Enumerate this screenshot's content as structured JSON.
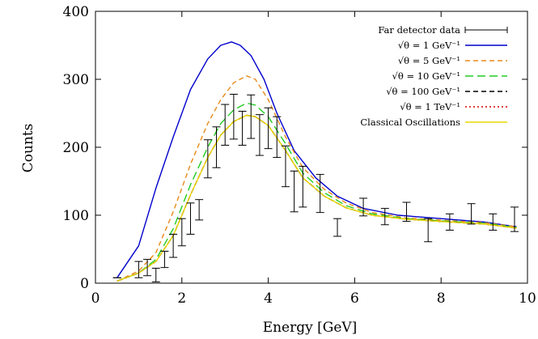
{
  "chart_data": {
    "type": "line",
    "xlabel": "Energy [GeV]",
    "ylabel": "Counts",
    "xlim": [
      0,
      10
    ],
    "ylim": [
      0,
      400
    ],
    "xticks": [
      0,
      2,
      4,
      6,
      8,
      10
    ],
    "yticks": [
      0,
      100,
      200,
      300,
      400
    ],
    "grid": false,
    "legend_position": "top-right",
    "data_series": {
      "name": "Far detector data",
      "color": "#000000",
      "x": [
        0.5,
        1.0,
        1.2,
        1.4,
        1.6,
        1.8,
        2.0,
        2.2,
        2.4,
        2.6,
        2.8,
        3.0,
        3.2,
        3.4,
        3.6,
        3.8,
        4.0,
        4.2,
        4.4,
        4.6,
        4.8,
        5.2,
        5.6,
        6.2,
        6.7,
        7.2,
        7.7,
        8.2,
        8.7,
        9.2,
        9.7
      ],
      "y": [
        8,
        20,
        23,
        12,
        35,
        55,
        75,
        95,
        108,
        183,
        200,
        233,
        245,
        228,
        245,
        218,
        228,
        215,
        172,
        135,
        142,
        132,
        82,
        112,
        98,
        105,
        78,
        90,
        102,
        90,
        94
      ],
      "err": [
        0,
        12,
        12,
        10,
        12,
        17,
        20,
        23,
        15,
        28,
        30,
        30,
        33,
        25,
        32,
        30,
        30,
        30,
        30,
        30,
        30,
        28,
        13,
        13,
        12,
        14,
        17,
        12,
        15,
        12,
        18
      ]
    },
    "series": [
      {
        "name": "√θ = 1 GeV⁻¹",
        "color": "#0000cc",
        "dash": "solid",
        "x": [
          0.5,
          1.0,
          1.4,
          1.8,
          2.2,
          2.6,
          2.9,
          3.15,
          3.35,
          3.6,
          3.9,
          4.2,
          4.6,
          5.1,
          5.6,
          6.2,
          7.0,
          8.0,
          9.0,
          9.75
        ],
        "values": [
          8,
          55,
          140,
          215,
          285,
          330,
          350,
          355,
          350,
          335,
          300,
          250,
          195,
          155,
          128,
          110,
          100,
          95,
          90,
          83
        ]
      },
      {
        "name": "√θ = 5 GeV⁻¹",
        "color": "#e88a1a",
        "dash": "dashed",
        "x": [
          0.5,
          1.0,
          1.4,
          1.8,
          2.2,
          2.6,
          2.9,
          3.2,
          3.5,
          3.7,
          4.0,
          4.4,
          4.8,
          5.3,
          5.8,
          6.4,
          7.2,
          8.2,
          9.0,
          9.75
        ],
        "values": [
          3,
          18,
          45,
          105,
          175,
          235,
          270,
          295,
          305,
          300,
          270,
          215,
          170,
          138,
          118,
          104,
          96,
          92,
          89,
          83
        ]
      },
      {
        "name": "√θ = 10 GeV⁻¹",
        "color": "#22cc22",
        "dash": "longdash",
        "x": [
          0.5,
          1.0,
          1.4,
          1.8,
          2.2,
          2.6,
          2.9,
          3.2,
          3.5,
          3.7,
          4.0,
          4.4,
          4.8,
          5.3,
          5.8,
          6.4,
          7.2,
          8.2,
          9.0,
          9.75
        ],
        "values": [
          3,
          15,
          35,
          80,
          145,
          200,
          235,
          255,
          265,
          262,
          245,
          205,
          162,
          133,
          114,
          102,
          95,
          91,
          88,
          82
        ]
      },
      {
        "name": "√θ = 100 GeV⁻¹",
        "color": "#000000",
        "dash": "dashed",
        "x": [
          0.5,
          1.0,
          1.4,
          1.8,
          2.2,
          2.6,
          2.9,
          3.2,
          3.5,
          3.7,
          4.0,
          4.4,
          4.8,
          5.3,
          5.8,
          6.4,
          7.2,
          8.2,
          9.0,
          9.75
        ],
        "values": [
          3,
          15,
          32,
          70,
          130,
          185,
          218,
          238,
          247,
          245,
          232,
          195,
          155,
          128,
          111,
          100,
          94,
          90,
          87,
          81
        ]
      },
      {
        "name": "√θ = 1 TeV⁻¹",
        "color": "#dd0000",
        "dash": "dotted",
        "x": [
          0.5,
          1.0,
          1.4,
          1.8,
          2.2,
          2.6,
          2.9,
          3.2,
          3.5,
          3.7,
          4.0,
          4.4,
          4.8,
          5.3,
          5.8,
          6.4,
          7.2,
          8.2,
          9.0,
          9.75
        ],
        "values": [
          3,
          15,
          32,
          70,
          130,
          185,
          218,
          238,
          247,
          245,
          232,
          195,
          155,
          128,
          111,
          100,
          94,
          90,
          87,
          81
        ]
      },
      {
        "name": "Classical Oscillations",
        "color": "#e8d800",
        "dash": "solid",
        "x": [
          0.5,
          1.0,
          1.4,
          1.8,
          2.2,
          2.6,
          2.9,
          3.2,
          3.5,
          3.7,
          4.0,
          4.4,
          4.8,
          5.3,
          5.8,
          6.4,
          7.2,
          8.2,
          9.0,
          9.75
        ],
        "values": [
          3,
          15,
          32,
          70,
          130,
          185,
          218,
          238,
          247,
          245,
          232,
          195,
          155,
          128,
          111,
          100,
          94,
          90,
          87,
          81
        ]
      }
    ]
  }
}
